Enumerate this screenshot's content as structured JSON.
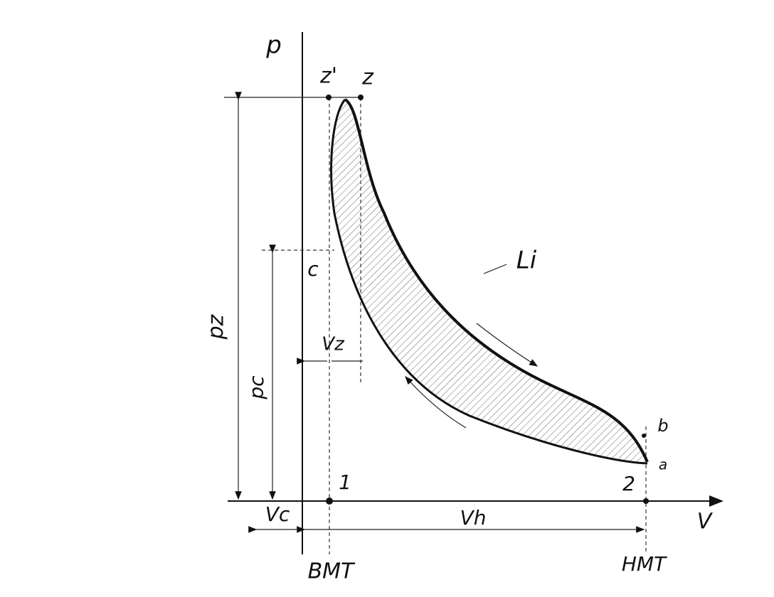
{
  "axes": {
    "p": "p",
    "v": "V"
  },
  "points": {
    "z_prime": "z'",
    "z": "z",
    "c": "c",
    "b": "b",
    "a": "a",
    "one": "1",
    "two": "2"
  },
  "work": "Li",
  "dimensions": {
    "pz": "pz",
    "pc": "pc",
    "vz": "Vz",
    "vc": "Vc",
    "vh": "Vh"
  },
  "positions": {
    "bmt": "BMT",
    "hmt": "HMT"
  }
}
